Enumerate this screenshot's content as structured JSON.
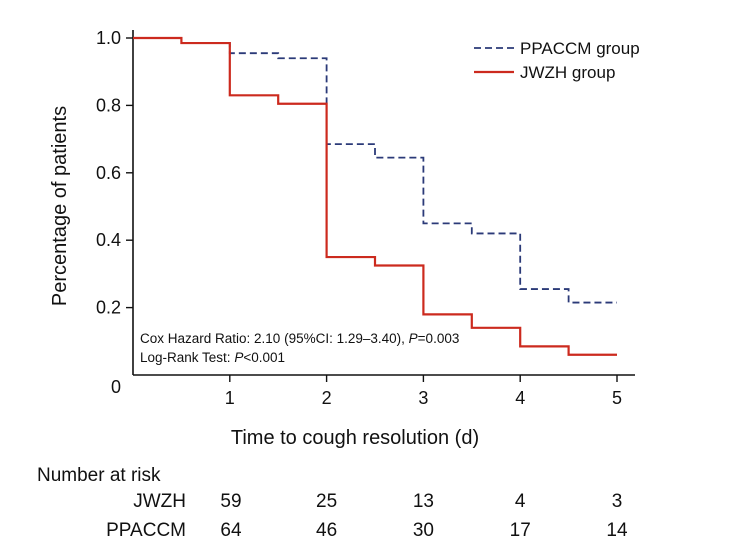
{
  "chart_data": {
    "type": "line",
    "xlabel": "Time to cough resolution (d)",
    "ylabel": "Percentage of patients",
    "xlim": [
      0,
      5
    ],
    "ylim": [
      0,
      1.05
    ],
    "x_ticks": [
      1,
      2,
      3,
      4,
      5
    ],
    "x_tick_labels": [
      "1",
      "2",
      "3",
      "4",
      "5"
    ],
    "y_ticks": [
      0,
      0.2,
      0.4,
      0.6,
      0.8,
      1.0
    ],
    "y_tick_labels": [
      "0",
      "0.2",
      "0.4",
      "0.6",
      "0.8",
      "1.0"
    ],
    "grid": false,
    "legend_position": "top-right",
    "series": [
      {
        "name": "PPACCM group",
        "color": "#2b3a78",
        "style": "dashed",
        "step_x": [
          0,
          0.5,
          1,
          1.5,
          2,
          2.5,
          3,
          3.5,
          4,
          4.5,
          5
        ],
        "step_y": [
          1.0,
          0.985,
          0.955,
          0.94,
          0.685,
          0.645,
          0.45,
          0.42,
          0.255,
          0.215,
          0.215
        ]
      },
      {
        "name": "JWZH group",
        "color": "#cc2a1e",
        "style": "solid",
        "step_x": [
          0,
          0.5,
          1,
          1.5,
          2,
          2.5,
          3,
          3.5,
          4,
          4.5,
          5
        ],
        "step_y": [
          1.0,
          0.985,
          0.83,
          0.805,
          0.35,
          0.325,
          0.18,
          0.14,
          0.085,
          0.06,
          0.06
        ]
      }
    ],
    "annotations": {
      "cox_prefix": "Cox Hazard Ratio: 2.10 (95%CI: 1.29–3.40), ",
      "cox_p_symbol": "P",
      "cox_p_value": "=0.003",
      "logrank_prefix": "Log-Rank Test: ",
      "logrank_p_symbol": "P",
      "logrank_p_value": "<0.001"
    }
  },
  "risk_table": {
    "title": "Number at risk",
    "rows": [
      {
        "label": "JWZH",
        "values": [
          "59",
          "25",
          "13",
          "4",
          "3"
        ]
      },
      {
        "label": "PPACCM",
        "values": [
          "64",
          "46",
          "30",
          "17",
          "14"
        ]
      }
    ]
  }
}
